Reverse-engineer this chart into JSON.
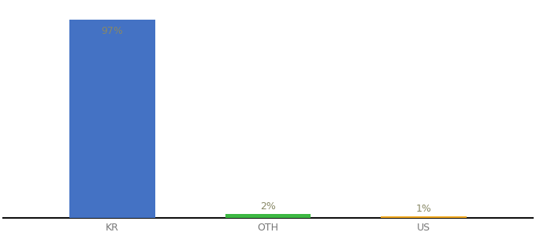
{
  "categories": [
    "KR",
    "OTH",
    "US"
  ],
  "values": [
    97,
    2,
    1
  ],
  "bar_colors": [
    "#4472c4",
    "#3db843",
    "#f0a820"
  ],
  "value_labels": [
    "97%",
    "2%",
    "1%"
  ],
  "background_color": "#ffffff",
  "label_color": "#888866",
  "label_fontsize": 9,
  "tick_fontsize": 9,
  "tick_color": "#777777",
  "ylim": [
    0,
    105
  ],
  "bar_width": 0.55,
  "x_positions": [
    1,
    2,
    3
  ],
  "xlim": [
    0.3,
    3.7
  ]
}
